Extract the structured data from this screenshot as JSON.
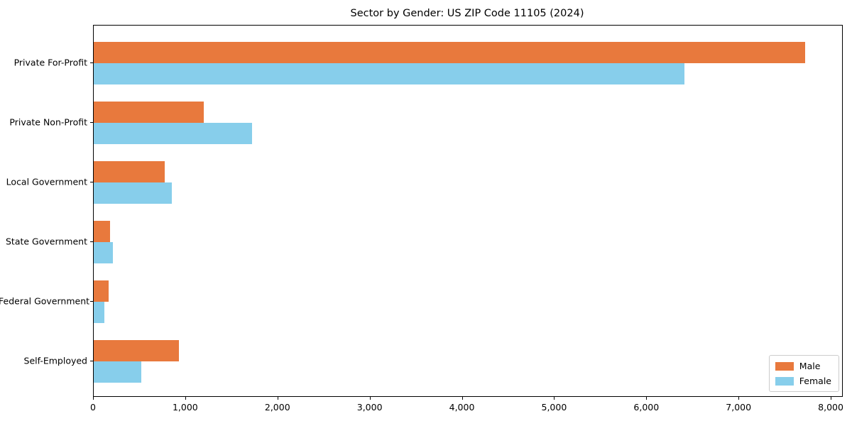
{
  "chart_data": {
    "type": "bar",
    "orientation": "horizontal",
    "title": "Sector by Gender: US ZIP Code 11105 (2024)",
    "categories": [
      "Private For-Profit",
      "Private Non-Profit",
      "Local Government",
      "State Government",
      "Federal Government",
      "Self-Employed"
    ],
    "series": [
      {
        "name": "Male",
        "color": "#e8793d",
        "values": [
          7716,
          1193,
          770,
          179,
          159,
          922
        ]
      },
      {
        "name": "Female",
        "color": "#87ceeb",
        "values": [
          6404,
          1717,
          847,
          206,
          113,
          518
        ]
      }
    ],
    "xlabel": "",
    "ylabel": "",
    "xlim": [
      0,
      8115
    ],
    "x_ticks": [
      0,
      1000,
      2000,
      3000,
      4000,
      5000,
      6000,
      7000,
      8000
    ],
    "x_tick_labels": [
      "0",
      "1,000",
      "2,000",
      "3,000",
      "4,000",
      "5,000",
      "6,000",
      "7,000",
      "8,000"
    ],
    "grid": false,
    "legend_position": "lower right"
  }
}
